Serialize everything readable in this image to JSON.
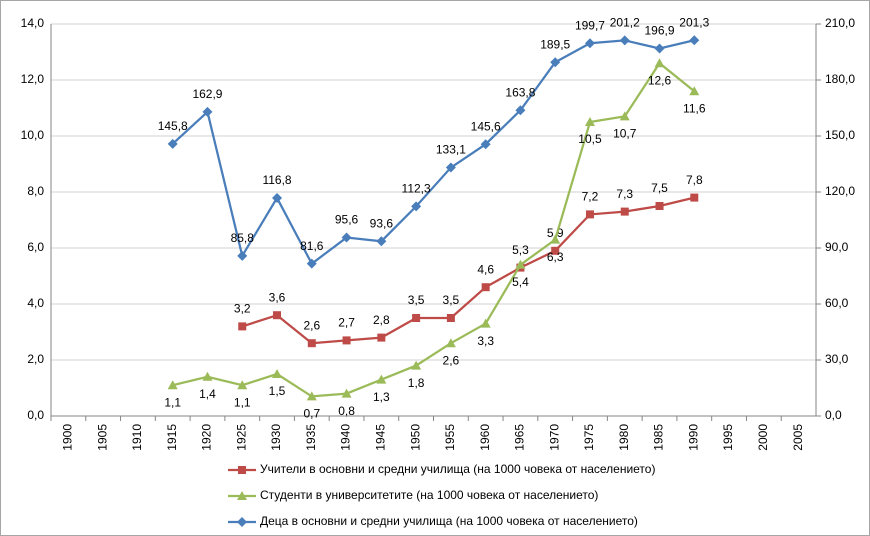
{
  "chart_data": {
    "type": "line",
    "categories": [
      "1900",
      "1905",
      "1910",
      "1915",
      "1920",
      "1925",
      "1930",
      "1935",
      "1940",
      "1945",
      "1950",
      "1955",
      "1960",
      "1965",
      "1970",
      "1975",
      "1980",
      "1985",
      "1990",
      "1995",
      "2000",
      "2005"
    ],
    "ylim": [
      0,
      14
    ],
    "yticks": [
      {
        "value": 0,
        "label": "0,0"
      },
      {
        "value": 2,
        "label": "2,0"
      },
      {
        "value": 4,
        "label": "4,0"
      },
      {
        "value": 6,
        "label": "6,0"
      },
      {
        "value": 8,
        "label": "8,0"
      },
      {
        "value": 10,
        "label": "10,0"
      },
      {
        "value": 12,
        "label": "12,0"
      },
      {
        "value": 14,
        "label": "14,0"
      }
    ],
    "y2lim": [
      0,
      210
    ],
    "y2ticks": [
      {
        "value": 0,
        "label": "0,0"
      },
      {
        "value": 30,
        "label": "30,0"
      },
      {
        "value": 60,
        "label": "60,0"
      },
      {
        "value": 90,
        "label": "90,0"
      },
      {
        "value": 120,
        "label": "120,0"
      },
      {
        "value": 150,
        "label": "150,0"
      },
      {
        "value": 180,
        "label": "180,0"
      },
      {
        "value": 210,
        "label": "210,0"
      }
    ],
    "grid": true,
    "series": [
      {
        "name": "Учители в основни и средни училища (на 1000 човека от населението)",
        "color": "#be4b48",
        "marker": "square",
        "axis": "y",
        "values": [
          null,
          null,
          null,
          null,
          null,
          3.2,
          3.6,
          2.6,
          2.7,
          2.8,
          3.5,
          3.5,
          4.6,
          5.3,
          5.9,
          7.2,
          7.3,
          7.5,
          7.8,
          null,
          null,
          null
        ],
        "value_labels": [
          null,
          null,
          null,
          null,
          null,
          "3,2",
          "3,6",
          "2,6",
          "2,7",
          "2,8",
          "3,5",
          "3,5",
          "4,6",
          "5,3",
          "5,9",
          "7,2",
          "7,3",
          "7,5",
          "7,8",
          null,
          null,
          null
        ]
      },
      {
        "name": "Студенти в университетите (на 1000 човека от населението)",
        "color": "#9bbb59",
        "marker": "triangle",
        "axis": "y",
        "values": [
          null,
          null,
          null,
          1.1,
          1.4,
          1.1,
          1.5,
          0.7,
          0.8,
          1.3,
          1.8,
          2.6,
          3.3,
          5.4,
          6.3,
          10.5,
          10.7,
          12.6,
          11.6,
          null,
          null,
          null
        ],
        "value_labels": [
          null,
          null,
          null,
          "1,1",
          "1,4",
          "1,1",
          "1,5",
          "0,7",
          "0,8",
          "1,3",
          "1,8",
          "2,6",
          "3,3",
          "5,4",
          "6,3",
          "10,5",
          "10,7",
          "12,6",
          "11,6",
          null,
          null,
          null
        ]
      },
      {
        "name": "Деца в основни и средни училища (на 1000 човека от населението)",
        "color": "#4a7ebb",
        "marker": "diamond",
        "axis": "y2",
        "values": [
          null,
          null,
          null,
          145.8,
          162.9,
          85.8,
          116.8,
          81.6,
          95.6,
          93.6,
          112.3,
          133.1,
          145.6,
          163.8,
          189.5,
          199.7,
          201.2,
          196.9,
          201.3,
          null,
          null,
          null
        ],
        "value_labels": [
          null,
          null,
          null,
          "145,8",
          "162,9",
          "85,8",
          "116,8",
          "81,6",
          "95,6",
          "93,6",
          "112,3",
          "133,1",
          "145,6",
          "163,8",
          "189,5",
          "199,7",
          "201,2",
          "196,9",
          "201,3",
          null,
          null,
          null
        ]
      }
    ]
  }
}
